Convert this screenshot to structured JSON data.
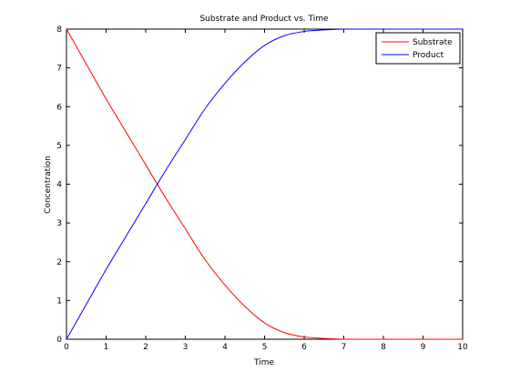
{
  "chart_data": {
    "type": "line",
    "title": "Substrate and Product vs. Time",
    "xlabel": "Time",
    "ylabel": "Concentration",
    "xlim": [
      0,
      10
    ],
    "ylim": [
      0,
      8
    ],
    "x_ticks": [
      "0",
      "1",
      "2",
      "3",
      "4",
      "5",
      "6",
      "7",
      "8",
      "9",
      "10"
    ],
    "y_ticks": [
      "0",
      "1",
      "2",
      "3",
      "4",
      "5",
      "6",
      "7",
      "8"
    ],
    "grid": false,
    "legend_position": "top-right",
    "x": [
      0,
      0.5,
      1,
      1.5,
      2,
      2.5,
      3,
      3.5,
      4,
      4.5,
      5,
      5.5,
      6,
      6.5,
      7,
      7.5,
      8,
      8.5,
      9,
      9.5,
      10
    ],
    "series": [
      {
        "name": "Substrate",
        "color": "#ff0000",
        "values": [
          8.0,
          7.1,
          6.2,
          5.35,
          4.5,
          3.65,
          2.85,
          2.05,
          1.4,
          0.85,
          0.42,
          0.17,
          0.06,
          0.02,
          0.0,
          0.0,
          0.0,
          0.0,
          0.0,
          0.0,
          0.0
        ]
      },
      {
        "name": "Product",
        "color": "#0000ff",
        "values": [
          0.0,
          0.9,
          1.8,
          2.65,
          3.5,
          4.35,
          5.15,
          5.95,
          6.6,
          7.15,
          7.58,
          7.83,
          7.94,
          7.98,
          8.0,
          8.0,
          8.0,
          8.0,
          8.0,
          8.0,
          8.0
        ]
      }
    ]
  }
}
